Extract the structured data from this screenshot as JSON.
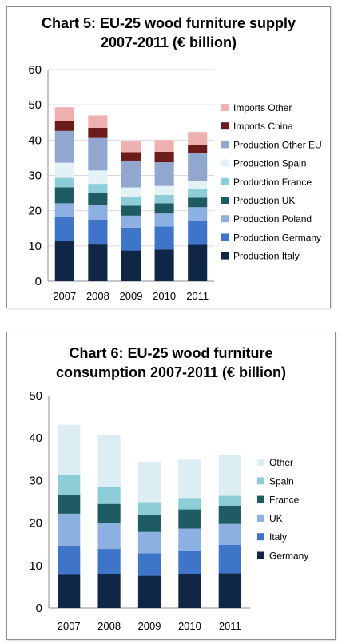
{
  "chart_data": [
    {
      "type": "bar",
      "stacked": true,
      "title": "Chart 5: EU-25 wood furniture supply",
      "subtitle": "2007-2011 (€ billion)",
      "xlabel": "",
      "ylabel": "",
      "ylim": [
        0,
        60
      ],
      "yticks": [
        "0",
        "10",
        "20",
        "30",
        "40",
        "50",
        "60"
      ],
      "grid": true,
      "legend_position": "right",
      "categories": [
        "2007",
        "2008",
        "2009",
        "2010",
        "2011"
      ],
      "series": [
        {
          "name": "Production Italy",
          "color": "#0f2647",
          "values": [
            11.4,
            10.4,
            8.7,
            9.0,
            10.3
          ]
        },
        {
          "name": "Production Germany",
          "color": "#3f75c8",
          "values": [
            7.0,
            7.1,
            6.5,
            6.5,
            6.8
          ]
        },
        {
          "name": "Production Poland",
          "color": "#8db0e2",
          "values": [
            3.7,
            4.0,
            3.4,
            3.7,
            3.9
          ]
        },
        {
          "name": "Production UK",
          "color": "#1f5b63",
          "values": [
            4.5,
            3.5,
            2.8,
            2.9,
            2.7
          ]
        },
        {
          "name": "Production France",
          "color": "#8ccdd8",
          "values": [
            2.7,
            2.6,
            2.6,
            2.4,
            2.4
          ]
        },
        {
          "name": "Production Spain",
          "color": "#e3f2f6",
          "values": [
            4.3,
            3.8,
            2.6,
            2.5,
            2.4
          ]
        },
        {
          "name": "Production Other EU",
          "color": "#92a7d0",
          "values": [
            9.0,
            9.2,
            7.6,
            6.7,
            7.8
          ]
        },
        {
          "name": "Imports China",
          "color": "#6d1a1a",
          "values": [
            2.9,
            2.9,
            2.4,
            3.0,
            2.4
          ]
        },
        {
          "name": "Imports Other",
          "color": "#efb0b0",
          "values": [
            3.8,
            3.5,
            3.0,
            3.3,
            3.6
          ]
        }
      ]
    },
    {
      "type": "bar",
      "stacked": true,
      "title": "Chart 6: EU-25 wood furniture",
      "subtitle": "consumption 2007-2011 (€ billion)",
      "xlabel": "",
      "ylabel": "",
      "ylim": [
        0,
        50
      ],
      "yticks": [
        "0",
        "10",
        "20",
        "30",
        "40",
        "50"
      ],
      "grid": false,
      "legend_position": "right",
      "categories": [
        "2007",
        "2008",
        "2009",
        "2010",
        "2011"
      ],
      "series": [
        {
          "name": "Germany",
          "color": "#0f2647",
          "values": [
            7.8,
            8.0,
            7.6,
            8.0,
            8.2
          ]
        },
        {
          "name": "Italy",
          "color": "#3f75c8",
          "values": [
            6.9,
            5.9,
            5.3,
            5.5,
            6.7
          ]
        },
        {
          "name": "UK",
          "color": "#8db0e2",
          "values": [
            7.5,
            6.0,
            5.0,
            5.2,
            4.9
          ]
        },
        {
          "name": "France",
          "color": "#1f5b63",
          "values": [
            4.4,
            4.6,
            4.1,
            4.5,
            4.3
          ]
        },
        {
          "name": "Spain",
          "color": "#8ccdd8",
          "values": [
            4.7,
            3.9,
            2.9,
            2.7,
            2.3
          ]
        },
        {
          "name": "Other",
          "color": "#dcedf3",
          "values": [
            11.8,
            12.3,
            9.5,
            9.0,
            9.6
          ]
        }
      ]
    }
  ]
}
